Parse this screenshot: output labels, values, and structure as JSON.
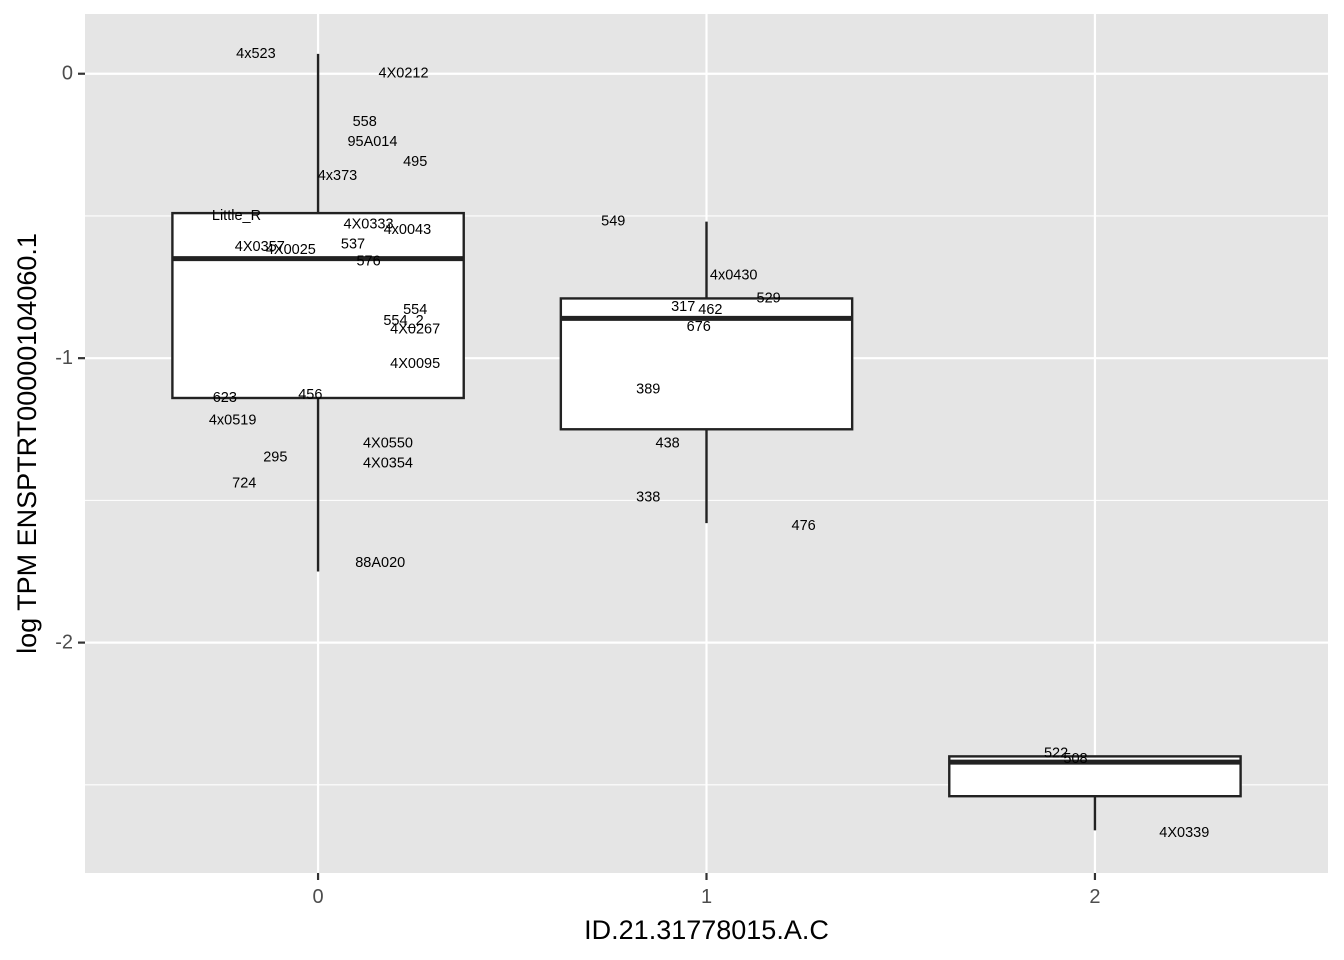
{
  "chart_data": {
    "type": "boxplot",
    "xlabel": "ID.21.31778015.A.C",
    "ylabel": "log TPM ENSPTRT00000104060.1",
    "ylim": [
      -2.81,
      0.21
    ],
    "xlim": [
      -0.6,
      2.6
    ],
    "categories": [
      "0",
      "1",
      "2"
    ],
    "y_ticks": [
      0,
      -1,
      -2
    ],
    "y_tick_labels": [
      "0",
      "-1",
      "-2"
    ],
    "grid": true,
    "background": "#e5e5e5",
    "boxes": [
      {
        "category": "0",
        "x": 0,
        "whisker_low": -1.75,
        "q1": -1.14,
        "median": -0.65,
        "q3": -0.49,
        "whisker_high": 0.07
      },
      {
        "category": "1",
        "x": 1,
        "whisker_low": -1.58,
        "q1": -1.25,
        "median": -0.86,
        "q3": -0.79,
        "whisker_high": -0.52
      },
      {
        "category": "2",
        "x": 2,
        "whisker_low": -2.66,
        "q1": -2.54,
        "median": -2.42,
        "q3": -2.4,
        "whisker_high": -2.4
      }
    ],
    "points": [
      {
        "label": "4x523",
        "x": -0.16,
        "y": 0.07
      },
      {
        "label": "4X0212",
        "x": 0.22,
        "y": 0.0
      },
      {
        "label": "558",
        "x": 0.12,
        "y": -0.17
      },
      {
        "label": "95A014",
        "x": 0.14,
        "y": -0.24
      },
      {
        "label": "495",
        "x": 0.25,
        "y": -0.31
      },
      {
        "label": "4x373",
        "x": 0.05,
        "y": -0.36
      },
      {
        "label": "Little_R",
        "x": -0.21,
        "y": -0.5
      },
      {
        "label": "4X0333",
        "x": 0.13,
        "y": -0.53
      },
      {
        "label": "4x0043",
        "x": 0.23,
        "y": -0.55
      },
      {
        "label": "537",
        "x": 0.09,
        "y": -0.6
      },
      {
        "label": "4X0357",
        "x": -0.15,
        "y": -0.61
      },
      {
        "label": "4X0025",
        "x": -0.07,
        "y": -0.62
      },
      {
        "label": "576",
        "x": 0.13,
        "y": -0.66
      },
      {
        "label": "554",
        "x": 0.25,
        "y": -0.83
      },
      {
        "label": "554_2",
        "x": 0.22,
        "y": -0.87
      },
      {
        "label": "4X0267",
        "x": 0.25,
        "y": -0.9
      },
      {
        "label": "4X0095",
        "x": 0.25,
        "y": -1.02
      },
      {
        "label": "623",
        "x": -0.24,
        "y": -1.14
      },
      {
        "label": "456",
        "x": -0.02,
        "y": -1.13
      },
      {
        "label": "4x0519",
        "x": -0.22,
        "y": -1.22
      },
      {
        "label": "4X0550",
        "x": 0.18,
        "y": -1.3
      },
      {
        "label": "295",
        "x": -0.11,
        "y": -1.35
      },
      {
        "label": "4X0354",
        "x": 0.18,
        "y": -1.37
      },
      {
        "label": "724",
        "x": -0.19,
        "y": -1.44
      },
      {
        "label": "88A020",
        "x": 0.16,
        "y": -1.72
      },
      {
        "label": "549",
        "x": 0.76,
        "y": -0.52
      },
      {
        "label": "4x0430",
        "x": 1.07,
        "y": -0.71
      },
      {
        "label": "529",
        "x": 1.16,
        "y": -0.79
      },
      {
        "label": "317",
        "x": 0.94,
        "y": -0.82
      },
      {
        "label": "462",
        "x": 1.01,
        "y": -0.83
      },
      {
        "label": "676",
        "x": 0.98,
        "y": -0.89
      },
      {
        "label": "389",
        "x": 0.85,
        "y": -1.11
      },
      {
        "label": "438",
        "x": 0.9,
        "y": -1.3
      },
      {
        "label": "338",
        "x": 0.85,
        "y": -1.49
      },
      {
        "label": "476",
        "x": 1.25,
        "y": -1.59
      },
      {
        "label": "522",
        "x": 1.9,
        "y": -2.39
      },
      {
        "label": "508",
        "x": 1.95,
        "y": -2.41
      },
      {
        "label": "4X0339",
        "x": 2.23,
        "y": -2.67
      }
    ],
    "colors": {
      "panel_background": "#e5e5e5",
      "grid_major": "#ffffff",
      "box_fill": "#ffffff",
      "box_stroke": "#222222",
      "tick_text": "#4d4d4d",
      "tick_mark": "#333333"
    }
  }
}
